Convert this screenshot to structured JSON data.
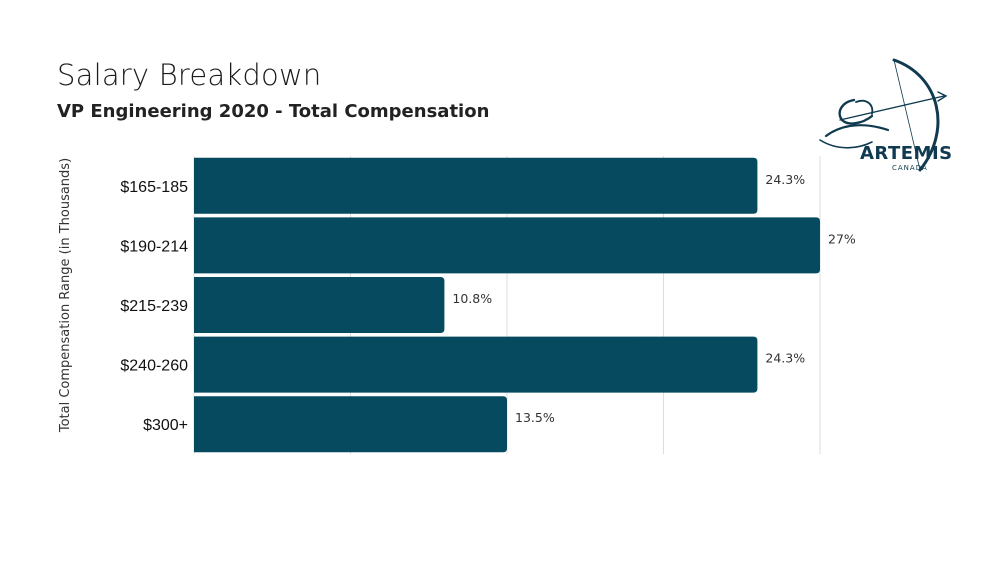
{
  "header": {
    "title": "Salary Breakdown",
    "subtitle": "VP Engineering 2020 - Total Compensation"
  },
  "logo": {
    "name": "ARTEMIS",
    "tagline": "CANADA",
    "color": "#0f3a4f"
  },
  "chart_data": {
    "type": "bar",
    "orientation": "horizontal",
    "title": "Salary Breakdown",
    "subtitle": "VP Engineering 2020 - Total Compensation",
    "ylabel": "Total Compensation Range (in Thousands)",
    "xlabel": "",
    "categories": [
      "$165-185",
      "$190-214",
      "$215-239",
      "$240-260",
      "$300+"
    ],
    "values": [
      24.3,
      27,
      10.8,
      24.3,
      13.5
    ],
    "value_labels": [
      "24.3%",
      "27%",
      "10.8%",
      "24.3%",
      "13.5%"
    ],
    "xlim": [
      0,
      27
    ],
    "grid": true,
    "legend": "none",
    "bar_color": "#054a5f",
    "grid_color": "#dddddd"
  }
}
